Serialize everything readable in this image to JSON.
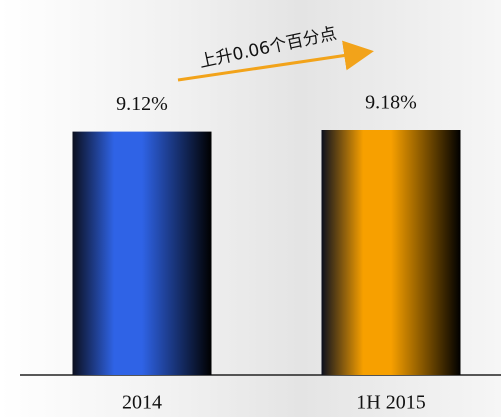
{
  "chart_data": {
    "type": "bar",
    "annotation": "上升0.06个百分点",
    "categories": [
      "2014",
      "1H 2015"
    ],
    "values": [
      9.12,
      9.18
    ],
    "value_labels": [
      "9.12%",
      "9.18%"
    ],
    "colors": [
      "#2f63e6",
      "#f7a000"
    ]
  }
}
